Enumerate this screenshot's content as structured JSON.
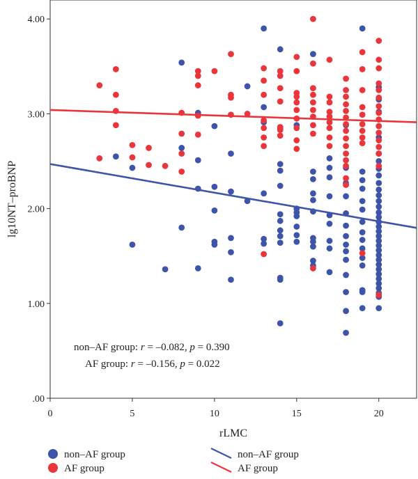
{
  "chart_data": {
    "type": "scatter",
    "xlabel": "rLMC",
    "ylabel": "lg10NT–proBNP",
    "xlim": [
      0,
      22.3
    ],
    "ylim": [
      0,
      4.2
    ],
    "x_ticks": [
      0,
      5,
      10,
      15,
      20
    ],
    "x_tick_labels": [
      "0",
      "5",
      "10",
      "15",
      "20"
    ],
    "y_ticks": [
      0,
      1,
      2,
      3,
      4
    ],
    "y_tick_labels": [
      ".00",
      "1.00",
      "2.00",
      "3.00",
      "4.00"
    ],
    "grid": false,
    "legend_position": "bottom",
    "series": [
      {
        "name": "non–AF group",
        "color": "#3e54a8",
        "fit": {
          "intercept": 2.47,
          "slope": -0.0302
        },
        "points": [
          [
            4,
            2.55
          ],
          [
            5,
            2.43
          ],
          [
            5,
            1.62
          ],
          [
            7,
            1.36
          ],
          [
            8,
            3.54
          ],
          [
            8,
            2.64
          ],
          [
            8,
            1.8
          ],
          [
            9,
            3.01
          ],
          [
            9,
            2.51
          ],
          [
            9,
            2.21
          ],
          [
            9,
            1.37
          ],
          [
            10,
            2.87
          ],
          [
            10,
            2.23
          ],
          [
            10,
            1.98
          ],
          [
            10,
            1.65
          ],
          [
            10,
            1.62
          ],
          [
            11,
            2.58
          ],
          [
            11,
            2.18
          ],
          [
            11,
            1.69
          ],
          [
            11,
            1.54
          ],
          [
            11,
            1.25
          ],
          [
            12,
            3.29
          ],
          [
            12,
            2.08
          ],
          [
            13,
            3.9
          ],
          [
            13,
            3.07
          ],
          [
            13,
            2.91
          ],
          [
            13,
            2.16
          ],
          [
            13,
            1.68
          ],
          [
            13,
            1.63
          ],
          [
            14,
            3.68
          ],
          [
            14,
            2.84
          ],
          [
            14,
            2.47
          ],
          [
            14,
            2.4
          ],
          [
            14,
            2.24
          ],
          [
            14,
            1.94
          ],
          [
            14,
            1.87
          ],
          [
            14,
            1.77
          ],
          [
            14,
            1.71
          ],
          [
            14,
            1.64
          ],
          [
            14,
            1.27
          ],
          [
            14,
            1.25
          ],
          [
            14,
            0.79
          ],
          [
            15,
            2.88
          ],
          [
            15,
            2.0
          ],
          [
            15,
            1.96
          ],
          [
            15,
            1.92
          ],
          [
            15,
            1.81
          ],
          [
            15,
            1.72
          ],
          [
            15,
            1.65
          ],
          [
            16,
            3.63
          ],
          [
            16,
            2.39
          ],
          [
            16,
            2.31
          ],
          [
            16,
            2.16
          ],
          [
            16,
            2.09
          ],
          [
            16,
            1.97
          ],
          [
            16,
            1.69
          ],
          [
            16,
            1.65
          ],
          [
            16,
            1.6
          ],
          [
            16,
            1.45
          ],
          [
            16,
            1.4
          ],
          [
            17,
            2.53
          ],
          [
            17,
            2.43
          ],
          [
            17,
            2.33
          ],
          [
            17,
            2.13
          ],
          [
            17,
            1.93
          ],
          [
            17,
            1.84
          ],
          [
            17,
            1.66
          ],
          [
            17,
            1.58
          ],
          [
            17,
            1.33
          ],
          [
            18,
            2.88
          ],
          [
            18,
            2.43
          ],
          [
            18,
            2.27
          ],
          [
            18,
            2.13
          ],
          [
            18,
            1.95
          ],
          [
            18,
            1.82
          ],
          [
            18,
            1.71
          ],
          [
            18,
            1.62
          ],
          [
            18,
            1.55
          ],
          [
            18,
            1.46
          ],
          [
            18,
            1.3
          ],
          [
            18,
            1.12
          ],
          [
            18,
            0.92
          ],
          [
            18,
            0.69
          ],
          [
            19,
            3.9
          ],
          [
            19,
            2.39
          ],
          [
            19,
            2.3
          ],
          [
            19,
            2.21
          ],
          [
            19,
            2.08
          ],
          [
            19,
            1.99
          ],
          [
            19,
            1.86
          ],
          [
            19,
            1.75
          ],
          [
            19,
            1.67
          ],
          [
            19,
            1.58
          ],
          [
            19,
            1.48
          ],
          [
            19,
            1.4
          ],
          [
            19,
            1.14
          ],
          [
            19,
            1.12
          ],
          [
            19,
            0.95
          ],
          [
            20,
            3.28
          ],
          [
            20,
            3.15
          ],
          [
            20,
            3.02
          ],
          [
            20,
            2.75
          ],
          [
            20,
            2.58
          ],
          [
            20,
            2.5
          ],
          [
            20,
            2.42
          ],
          [
            20,
            2.35
          ],
          [
            20,
            2.27
          ],
          [
            20,
            2.2
          ],
          [
            20,
            2.14
          ],
          [
            20,
            2.08
          ],
          [
            20,
            2.02
          ],
          [
            20,
            1.96
          ],
          [
            20,
            1.91
          ],
          [
            20,
            1.86
          ],
          [
            20,
            1.81
          ],
          [
            20,
            1.76
          ],
          [
            20,
            1.71
          ],
          [
            20,
            1.66
          ],
          [
            20,
            1.61
          ],
          [
            20,
            1.56
          ],
          [
            20,
            1.51
          ],
          [
            20,
            1.46
          ],
          [
            20,
            1.41
          ],
          [
            20,
            1.36
          ],
          [
            20,
            1.31
          ],
          [
            20,
            1.26
          ],
          [
            20,
            1.21
          ],
          [
            20,
            1.16
          ],
          [
            20,
            1.11
          ],
          [
            20,
            1.07
          ],
          [
            20,
            0.95
          ]
        ]
      },
      {
        "name": "AF group",
        "color": "#e8363c",
        "fit": {
          "intercept": 3.04,
          "slope": -0.0058
        },
        "points": [
          [
            3,
            3.3
          ],
          [
            3,
            2.53
          ],
          [
            4,
            3.47
          ],
          [
            4,
            3.2
          ],
          [
            4,
            3.03
          ],
          [
            4,
            2.88
          ],
          [
            5,
            2.67
          ],
          [
            5,
            2.54
          ],
          [
            6,
            2.64
          ],
          [
            6,
            2.46
          ],
          [
            7,
            2.45
          ],
          [
            8,
            3.01
          ],
          [
            8,
            2.79
          ],
          [
            8,
            2.58
          ],
          [
            8,
            2.39
          ],
          [
            9,
            3.45
          ],
          [
            9,
            3.4
          ],
          [
            9,
            3.3
          ],
          [
            9,
            2.98
          ],
          [
            9,
            2.78
          ],
          [
            10,
            3.45
          ],
          [
            11,
            3.63
          ],
          [
            11,
            3.2
          ],
          [
            11,
            3.17
          ],
          [
            11,
            2.99
          ],
          [
            12,
            3.0
          ],
          [
            13,
            3.48
          ],
          [
            13,
            3.35
          ],
          [
            13,
            3.2
          ],
          [
            13,
            2.93
          ],
          [
            13,
            2.85
          ],
          [
            13,
            2.75
          ],
          [
            13,
            2.66
          ],
          [
            13,
            1.52
          ],
          [
            14,
            3.45
          ],
          [
            14,
            3.4
          ],
          [
            14,
            3.27
          ],
          [
            14,
            3.13
          ],
          [
            14,
            2.86
          ],
          [
            14,
            2.83
          ],
          [
            14,
            2.77
          ],
          [
            15,
            3.6
          ],
          [
            15,
            3.45
          ],
          [
            15,
            3.22
          ],
          [
            15,
            3.18
          ],
          [
            15,
            3.12
          ],
          [
            15,
            3.04
          ],
          [
            15,
            2.95
          ],
          [
            15,
            2.85
          ],
          [
            15,
            2.72
          ],
          [
            15,
            2.63
          ],
          [
            16,
            4.0
          ],
          [
            16,
            3.53
          ],
          [
            16,
            3.27
          ],
          [
            16,
            3.2
          ],
          [
            16,
            3.12
          ],
          [
            16,
            3.04
          ],
          [
            16,
            2.97
          ],
          [
            16,
            2.88
          ],
          [
            16,
            2.79
          ],
          [
            16,
            1.37
          ],
          [
            17,
            3.57
          ],
          [
            17,
            3.18
          ],
          [
            17,
            3.12
          ],
          [
            17,
            3.02
          ],
          [
            17,
            2.97
          ],
          [
            17,
            2.91
          ],
          [
            17,
            2.85
          ],
          [
            17,
            2.75
          ],
          [
            17,
            2.66
          ],
          [
            18,
            3.37
          ],
          [
            18,
            3.25
          ],
          [
            18,
            3.18
          ],
          [
            18,
            3.1
          ],
          [
            18,
            3.03
          ],
          [
            18,
            2.96
          ],
          [
            18,
            2.89
          ],
          [
            18,
            2.82
          ],
          [
            18,
            2.74
          ],
          [
            18,
            2.66
          ],
          [
            18,
            2.58
          ],
          [
            18,
            2.51
          ],
          [
            18,
            2.45
          ],
          [
            18,
            2.32
          ],
          [
            18,
            2.25
          ],
          [
            19,
            3.65
          ],
          [
            19,
            3.47
          ],
          [
            19,
            3.25
          ],
          [
            19,
            3.07
          ],
          [
            19,
            2.99
          ],
          [
            19,
            2.89
          ],
          [
            19,
            2.82
          ],
          [
            19,
            2.75
          ],
          [
            19,
            2.69
          ],
          [
            19,
            1.53
          ],
          [
            20,
            3.77
          ],
          [
            20,
            3.57
          ],
          [
            20,
            3.48
          ],
          [
            20,
            3.32
          ],
          [
            20,
            3.25
          ],
          [
            20,
            3.17
          ],
          [
            20,
            3.08
          ],
          [
            20,
            3.01
          ],
          [
            20,
            2.94
          ],
          [
            20,
            2.87
          ],
          [
            20,
            2.8
          ],
          [
            20,
            2.72
          ],
          [
            20,
            2.65
          ],
          [
            20,
            2.58
          ],
          [
            20,
            2.45
          ],
          [
            20,
            1.09
          ]
        ]
      }
    ],
    "annotations": [
      {
        "parts": [
          {
            "t": "non–AF group: ",
            "i": false
          },
          {
            "t": "r",
            "i": true
          },
          {
            "t": " = –0.082, ",
            "i": false
          },
          {
            "t": "p",
            "i": true
          },
          {
            "t": " = 0.390",
            "i": false
          }
        ]
      },
      {
        "parts": [
          {
            "t": "AF group: ",
            "i": false
          },
          {
            "t": "r",
            "i": true
          },
          {
            "t": " = –0.156, ",
            "i": false
          },
          {
            "t": "p",
            "i": true
          },
          {
            "t": " = 0.022",
            "i": false
          }
        ]
      }
    ]
  },
  "legend": {
    "markers": [
      {
        "label": "non–AF group",
        "color": "#3e54a8"
      },
      {
        "label": "AF group",
        "color": "#e8363c"
      }
    ],
    "lines": [
      {
        "label": "non–AF group",
        "color": "#3e54a8"
      },
      {
        "label": "AF group",
        "color": "#e8363c"
      }
    ]
  }
}
